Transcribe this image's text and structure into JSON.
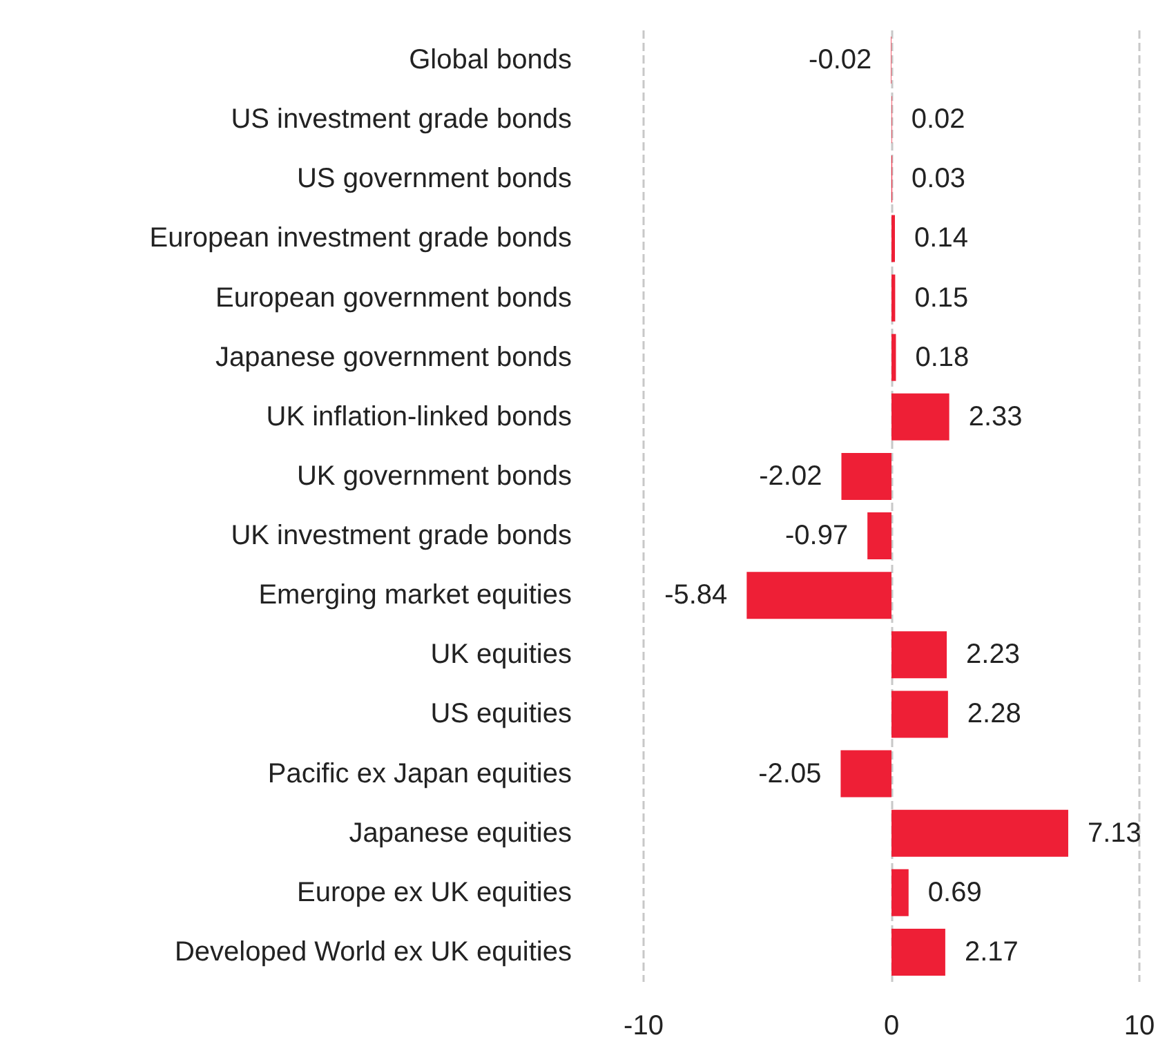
{
  "chart_data": {
    "type": "bar",
    "orientation": "horizontal",
    "categories": [
      "Global bonds",
      "US investment grade bonds",
      "US government bonds",
      "European investment grade bonds",
      "European government bonds",
      "Japanese government bonds",
      "UK inflation-linked bonds",
      "UK government bonds",
      "UK investment grade bonds",
      "Emerging market equities",
      "UK equities",
      "US equities",
      "Pacific ex Japan equities",
      "Japanese equities",
      "Europe ex UK equities",
      "Developed World ex UK equities"
    ],
    "values": [
      -0.02,
      0.02,
      0.03,
      0.14,
      0.15,
      0.18,
      2.33,
      -2.02,
      -0.97,
      -5.84,
      2.23,
      2.28,
      -2.05,
      7.13,
      0.69,
      2.17
    ],
    "color": "#ee1f36",
    "xlim": [
      -10,
      10
    ],
    "xticks": [
      -10,
      0,
      10
    ],
    "grid": "x",
    "data_labels": true
  }
}
